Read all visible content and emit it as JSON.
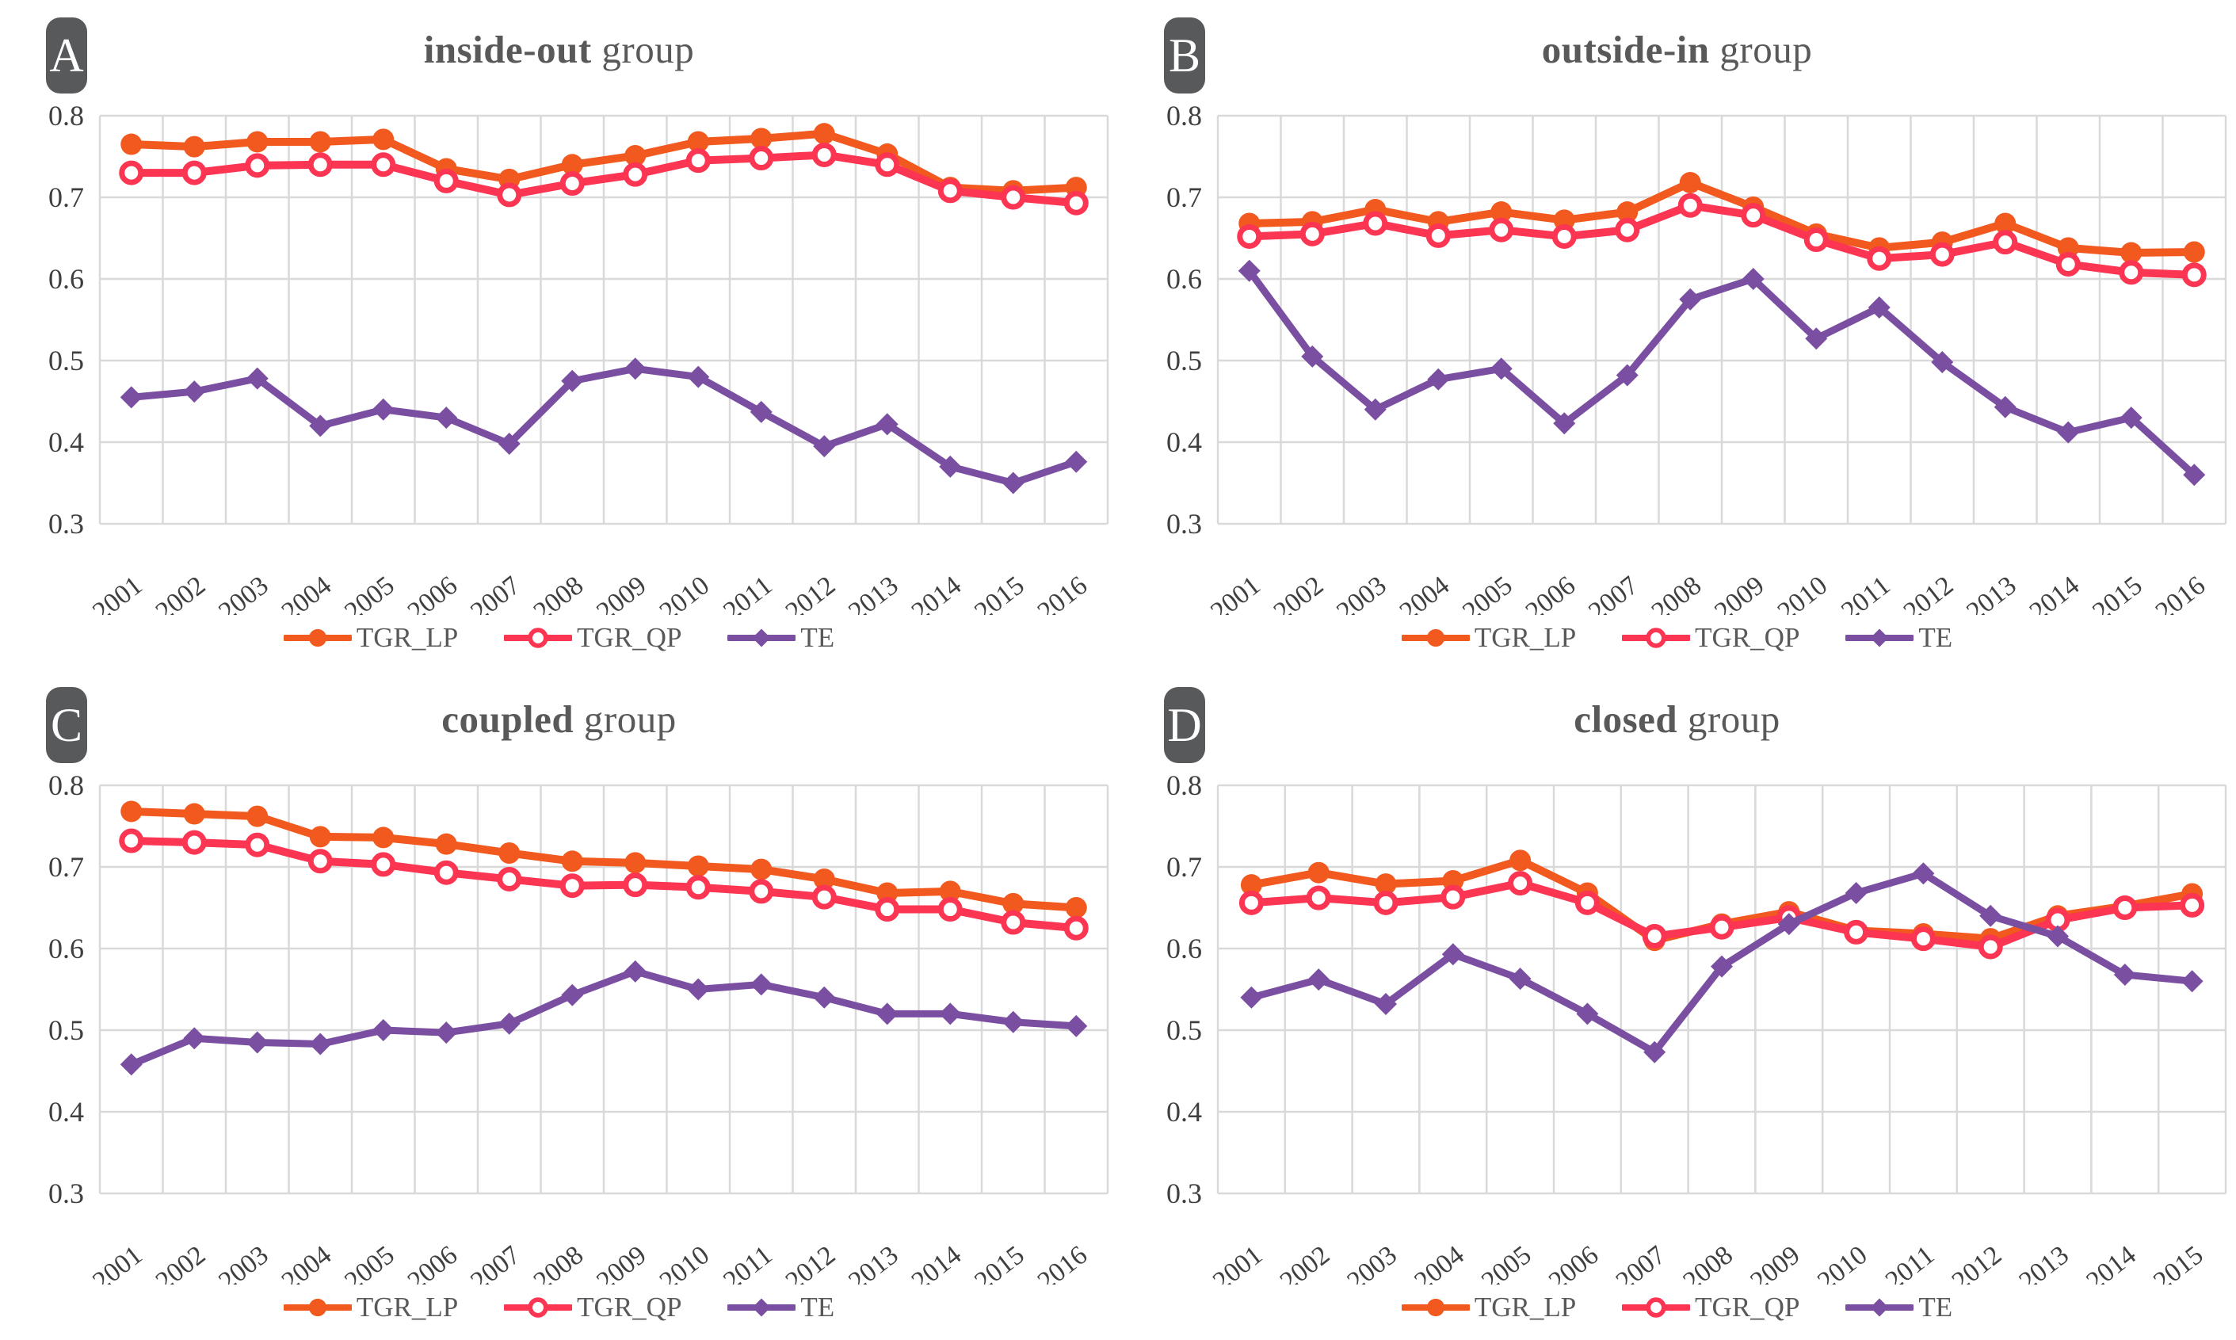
{
  "style": {
    "color_lp": "#F1591F",
    "color_qp": "#FB3552",
    "color_te": "#7A4FA1",
    "grid_color": "#D9D9D9",
    "tick_color": "#3F3F3F",
    "title_color": "#595959",
    "badge_bg": "#58595B",
    "badge_fg": "#FFFFFF",
    "marker_open_fill": "#FFFFFF"
  },
  "legend_labels": [
    "TGR_LP",
    "TGR_QP",
    "TE"
  ],
  "chart_data": [
    {
      "id": "A",
      "type": "line",
      "badge": "A",
      "title_bold": "inside-out",
      "title_rest": " group",
      "ylim": [
        0.3,
        0.8
      ],
      "ytick_step": 0.1,
      "grid": true,
      "legend_position": "bottom",
      "categories": [
        "2001",
        "2002",
        "2003",
        "2004",
        "2005",
        "2006",
        "2007",
        "2008",
        "2009",
        "2010",
        "2011",
        "2012",
        "2013",
        "2014",
        "2015",
        "2016"
      ],
      "series": [
        {
          "name": "TGR_LP",
          "marker": "circle-filled",
          "color": "lp",
          "values": [
            0.765,
            0.762,
            0.768,
            0.768,
            0.771,
            0.735,
            0.722,
            0.74,
            0.751,
            0.768,
            0.772,
            0.778,
            0.753,
            0.712,
            0.708,
            0.712
          ]
        },
        {
          "name": "TGR_QP",
          "marker": "circle-open",
          "color": "qp",
          "values": [
            0.73,
            0.73,
            0.739,
            0.74,
            0.74,
            0.72,
            0.703,
            0.717,
            0.728,
            0.745,
            0.748,
            0.752,
            0.74,
            0.708,
            0.7,
            0.693
          ]
        },
        {
          "name": "TE",
          "marker": "diamond",
          "color": "te",
          "values": [
            0.455,
            0.462,
            0.478,
            0.42,
            0.44,
            0.43,
            0.398,
            0.475,
            0.49,
            0.48,
            0.437,
            0.395,
            0.422,
            0.37,
            0.35,
            0.376
          ]
        }
      ]
    },
    {
      "id": "B",
      "type": "line",
      "badge": "B",
      "title_bold": "outside-in",
      "title_rest": " group",
      "ylim": [
        0.3,
        0.8
      ],
      "ytick_step": 0.1,
      "grid": true,
      "legend_position": "bottom",
      "categories": [
        "2001",
        "2002",
        "2003",
        "2004",
        "2005",
        "2006",
        "2007",
        "2008",
        "2009",
        "2010",
        "2011",
        "2012",
        "2013",
        "2014",
        "2015",
        "2016"
      ],
      "series": [
        {
          "name": "TGR_LP",
          "marker": "circle-filled",
          "color": "lp",
          "values": [
            0.668,
            0.67,
            0.685,
            0.67,
            0.682,
            0.672,
            0.682,
            0.718,
            0.688,
            0.655,
            0.638,
            0.645,
            0.668,
            0.638,
            0.632,
            0.633
          ]
        },
        {
          "name": "TGR_QP",
          "marker": "circle-open",
          "color": "qp",
          "values": [
            0.652,
            0.655,
            0.668,
            0.653,
            0.66,
            0.652,
            0.66,
            0.69,
            0.678,
            0.648,
            0.625,
            0.63,
            0.645,
            0.618,
            0.608,
            0.605
          ]
        },
        {
          "name": "TE",
          "marker": "diamond",
          "color": "te",
          "values": [
            0.61,
            0.505,
            0.44,
            0.477,
            0.49,
            0.423,
            0.482,
            0.575,
            0.6,
            0.527,
            0.565,
            0.498,
            0.443,
            0.412,
            0.43,
            0.36
          ]
        }
      ]
    },
    {
      "id": "C",
      "type": "line",
      "badge": "C",
      "title_bold": "coupled",
      "title_rest": " group",
      "ylim": [
        0.3,
        0.8
      ],
      "ytick_step": 0.1,
      "grid": true,
      "legend_position": "bottom",
      "categories": [
        "2001",
        "2002",
        "2003",
        "2004",
        "2005",
        "2006",
        "2007",
        "2008",
        "2009",
        "2010",
        "2011",
        "2012",
        "2013",
        "2014",
        "2015",
        "2016"
      ],
      "series": [
        {
          "name": "TGR_LP",
          "marker": "circle-filled",
          "color": "lp",
          "values": [
            0.768,
            0.765,
            0.762,
            0.737,
            0.736,
            0.728,
            0.717,
            0.707,
            0.705,
            0.701,
            0.697,
            0.685,
            0.668,
            0.67,
            0.655,
            0.65
          ]
        },
        {
          "name": "TGR_QP",
          "marker": "circle-open",
          "color": "qp",
          "values": [
            0.732,
            0.73,
            0.727,
            0.707,
            0.703,
            0.693,
            0.685,
            0.677,
            0.678,
            0.675,
            0.67,
            0.663,
            0.648,
            0.648,
            0.632,
            0.625
          ]
        },
        {
          "name": "TE",
          "marker": "diamond",
          "color": "te",
          "values": [
            0.458,
            0.49,
            0.485,
            0.483,
            0.5,
            0.497,
            0.508,
            0.543,
            0.572,
            0.55,
            0.556,
            0.54,
            0.52,
            0.52,
            0.51,
            0.505
          ]
        }
      ]
    },
    {
      "id": "D",
      "type": "line",
      "badge": "D",
      "title_bold": "closed",
      "title_rest": " group",
      "ylim": [
        0.3,
        0.8
      ],
      "ytick_step": 0.1,
      "grid": true,
      "legend_position": "bottom",
      "categories": [
        "2001",
        "2002",
        "2003",
        "2004",
        "2005",
        "2006",
        "2007",
        "2008",
        "2009",
        "2010",
        "2011",
        "2012",
        "2013",
        "2014",
        "2015"
      ],
      "series": [
        {
          "name": "TGR_LP",
          "marker": "circle-filled",
          "color": "lp",
          "values": [
            0.678,
            0.693,
            0.679,
            0.683,
            0.708,
            0.668,
            0.61,
            0.63,
            0.645,
            0.622,
            0.618,
            0.612,
            0.64,
            0.652,
            0.667
          ]
        },
        {
          "name": "TGR_QP",
          "marker": "circle-open",
          "color": "qp",
          "values": [
            0.656,
            0.662,
            0.656,
            0.663,
            0.68,
            0.656,
            0.615,
            0.626,
            0.638,
            0.62,
            0.612,
            0.602,
            0.635,
            0.65,
            0.653
          ]
        },
        {
          "name": "TE",
          "marker": "diamond",
          "color": "te",
          "values": [
            0.54,
            0.562,
            0.532,
            0.593,
            0.563,
            0.52,
            0.473,
            0.578,
            0.63,
            0.668,
            0.692,
            0.64,
            0.615,
            0.568,
            0.56
          ]
        }
      ]
    }
  ]
}
